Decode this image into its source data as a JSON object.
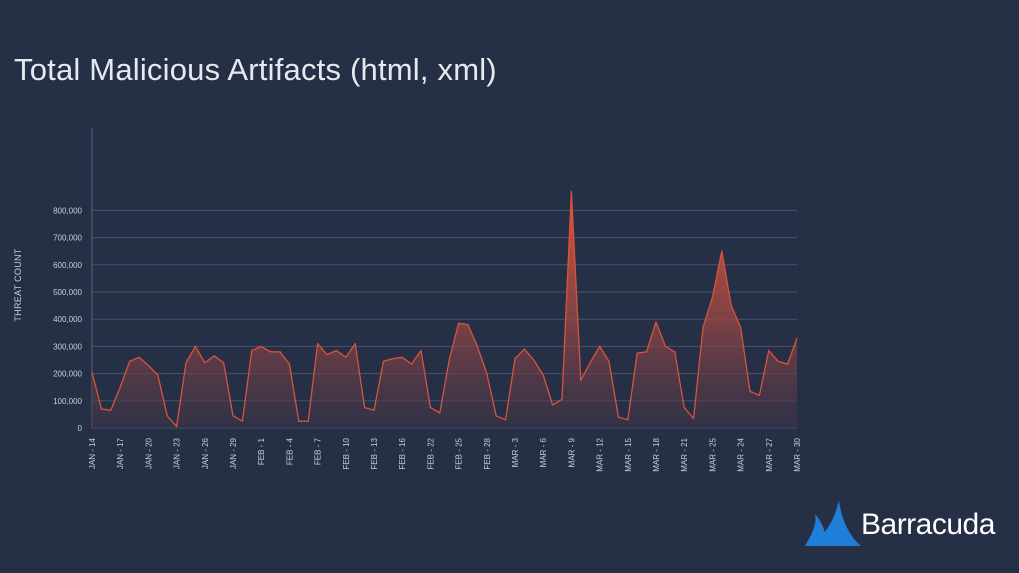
{
  "chart_data": {
    "type": "area",
    "title": "Total Malicious Artifacts (html, xml)",
    "xlabel": "",
    "ylabel": "THREAT COUNT",
    "ylim": [
      0,
      900000
    ],
    "y_ticks": [
      0,
      100000,
      200000,
      300000,
      400000,
      500000,
      600000,
      700000,
      800000
    ],
    "y_tick_labels": [
      "0",
      "100,000",
      "200,000",
      "300,000",
      "400,000",
      "500,000",
      "600,000",
      "700,000",
      "800,000"
    ],
    "x_tick_labels": [
      "JAN - 14",
      "JAN - 17",
      "JAN - 20",
      "JAN - 23",
      "JAN - 26",
      "JAN - 29",
      "FEB - 1",
      "FEB - 4",
      "FEB - 7",
      "FEB - 10",
      "FEB - 13",
      "FEB - 16",
      "FEB - 22",
      "FEB - 25",
      "FEB - 28",
      "MAR - 3",
      "MAR - 6",
      "MAR - 9",
      "MAR - 12",
      "MAR - 15",
      "MAR - 18",
      "MAR - 21",
      "MAR - 25",
      "MAR - 24",
      "MAR - 27",
      "MAR - 30"
    ],
    "grid": true,
    "legend": "none",
    "series": [
      {
        "color": "#d9533c",
        "values": [
          205000,
          70000,
          65000,
          150000,
          245000,
          260000,
          230000,
          195000,
          45000,
          5000,
          240000,
          300000,
          240000,
          265000,
          240000,
          45000,
          25000,
          285000,
          300000,
          280000,
          280000,
          235000,
          25000,
          25000,
          310000,
          270000,
          285000,
          260000,
          310000,
          75000,
          65000,
          245000,
          255000,
          260000,
          235000,
          285000,
          75000,
          55000,
          250000,
          385000,
          380000,
          300000,
          200000,
          45000,
          30000,
          255000,
          290000,
          250000,
          195000,
          85000,
          105000,
          870000,
          175000,
          240000,
          300000,
          245000,
          40000,
          30000,
          275000,
          280000,
          390000,
          300000,
          280000,
          75000,
          35000,
          370000,
          480000,
          650000,
          450000,
          370000,
          135000,
          120000,
          285000,
          245000,
          235000,
          330000
        ]
      }
    ]
  },
  "logo": {
    "icon": "barracuda-fin-icon",
    "text": "Barracuda",
    "accent": "#1f7ed8"
  }
}
